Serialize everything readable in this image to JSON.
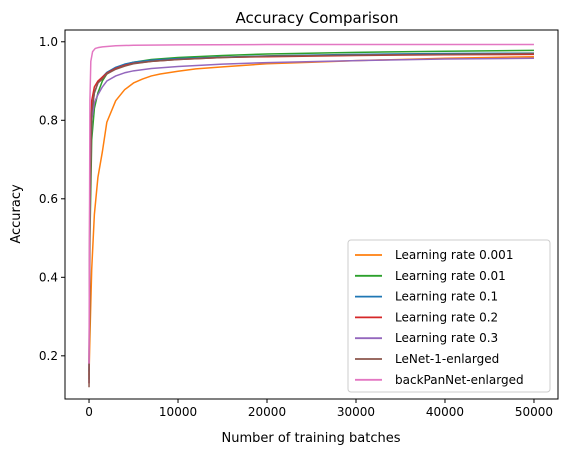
{
  "chart_data": {
    "type": "line",
    "title": "Accuracy Comparison",
    "xlabel": "Number of training batches",
    "ylabel": "Accuracy",
    "xlim": [
      -2700,
      52700
    ],
    "ylim": [
      0.09,
      1.03
    ],
    "x_ticks": [
      {
        "value": 0,
        "label": "0"
      },
      {
        "value": 10000,
        "label": "10000"
      },
      {
        "value": 20000,
        "label": "20000"
      },
      {
        "value": 30000,
        "label": "30000"
      },
      {
        "value": 40000,
        "label": "40000"
      },
      {
        "value": 50000,
        "label": "50000"
      }
    ],
    "y_ticks": [
      {
        "value": 0.2,
        "label": "0.2"
      },
      {
        "value": 0.4,
        "label": "0.4"
      },
      {
        "value": 0.6,
        "label": "0.6"
      },
      {
        "value": 0.8,
        "label": "0.8"
      },
      {
        "value": 1.0,
        "label": "1.0"
      }
    ],
    "grid": false,
    "legend_position": "lower-right",
    "series": [
      {
        "name": "Learning rate 0.001",
        "color": "#ff7f0e",
        "points": [
          [
            0,
            0.15
          ],
          [
            100,
            0.25
          ],
          [
            300,
            0.42
          ],
          [
            600,
            0.56
          ],
          [
            1000,
            0.655
          ],
          [
            1500,
            0.72
          ],
          [
            2000,
            0.795
          ],
          [
            3000,
            0.85
          ],
          [
            4000,
            0.878
          ],
          [
            5000,
            0.895
          ],
          [
            6000,
            0.905
          ],
          [
            7000,
            0.913
          ],
          [
            8000,
            0.918
          ],
          [
            10000,
            0.925
          ],
          [
            12000,
            0.931
          ],
          [
            15000,
            0.936
          ],
          [
            20000,
            0.944
          ],
          [
            25000,
            0.948
          ],
          [
            30000,
            0.952
          ],
          [
            35000,
            0.955
          ],
          [
            40000,
            0.958
          ],
          [
            45000,
            0.96
          ],
          [
            50000,
            0.962
          ]
        ]
      },
      {
        "name": "Learning rate 0.01",
        "color": "#2ca02c",
        "points": [
          [
            0,
            0.14
          ],
          [
            100,
            0.5
          ],
          [
            300,
            0.75
          ],
          [
            600,
            0.83
          ],
          [
            1000,
            0.87
          ],
          [
            1500,
            0.9
          ],
          [
            2000,
            0.918
          ],
          [
            3000,
            0.932
          ],
          [
            4000,
            0.942
          ],
          [
            5000,
            0.948
          ],
          [
            7000,
            0.955
          ],
          [
            10000,
            0.96
          ],
          [
            15000,
            0.965
          ],
          [
            20000,
            0.969
          ],
          [
            30000,
            0.973
          ],
          [
            40000,
            0.976
          ],
          [
            50000,
            0.978
          ]
        ]
      },
      {
        "name": "Learning rate 0.1",
        "color": "#1f77b4",
        "points": [
          [
            0,
            0.16
          ],
          [
            100,
            0.62
          ],
          [
            300,
            0.82
          ],
          [
            600,
            0.87
          ],
          [
            1000,
            0.895
          ],
          [
            1500,
            0.91
          ],
          [
            2000,
            0.922
          ],
          [
            3000,
            0.935
          ],
          [
            4000,
            0.943
          ],
          [
            5000,
            0.948
          ],
          [
            7000,
            0.953
          ],
          [
            10000,
            0.957
          ],
          [
            15000,
            0.961
          ],
          [
            20000,
            0.964
          ],
          [
            30000,
            0.968
          ],
          [
            40000,
            0.97
          ],
          [
            50000,
            0.971
          ]
        ]
      },
      {
        "name": "Learning rate 0.2",
        "color": "#d62728",
        "points": [
          [
            0,
            0.13
          ],
          [
            100,
            0.7
          ],
          [
            300,
            0.85
          ],
          [
            600,
            0.885
          ],
          [
            1000,
            0.9
          ],
          [
            1500,
            0.91
          ],
          [
            2000,
            0.92
          ],
          [
            3000,
            0.932
          ],
          [
            4000,
            0.94
          ],
          [
            5000,
            0.945
          ],
          [
            7000,
            0.95
          ],
          [
            10000,
            0.955
          ],
          [
            15000,
            0.96
          ],
          [
            20000,
            0.962
          ],
          [
            30000,
            0.965
          ],
          [
            40000,
            0.967
          ],
          [
            50000,
            0.968
          ]
        ]
      },
      {
        "name": "Learning rate 0.3",
        "color": "#9467bd",
        "points": [
          [
            0,
            0.13
          ],
          [
            100,
            0.6
          ],
          [
            300,
            0.8
          ],
          [
            600,
            0.845
          ],
          [
            1000,
            0.865
          ],
          [
            1500,
            0.885
          ],
          [
            2000,
            0.9
          ],
          [
            3000,
            0.913
          ],
          [
            4000,
            0.921
          ],
          [
            5000,
            0.926
          ],
          [
            7000,
            0.932
          ],
          [
            10000,
            0.937
          ],
          [
            15000,
            0.943
          ],
          [
            20000,
            0.947
          ],
          [
            30000,
            0.952
          ],
          [
            40000,
            0.956
          ],
          [
            50000,
            0.958
          ]
        ]
      },
      {
        "name": "LeNet-1-enlarged",
        "color": "#8c564b",
        "points": [
          [
            0,
            0.12
          ],
          [
            100,
            0.55
          ],
          [
            300,
            0.82
          ],
          [
            600,
            0.87
          ],
          [
            1000,
            0.895
          ],
          [
            1500,
            0.905
          ],
          [
            2000,
            0.918
          ],
          [
            3000,
            0.93
          ],
          [
            4000,
            0.938
          ],
          [
            5000,
            0.944
          ],
          [
            7000,
            0.95
          ],
          [
            10000,
            0.955
          ],
          [
            15000,
            0.96
          ],
          [
            20000,
            0.963
          ],
          [
            30000,
            0.966
          ],
          [
            40000,
            0.968
          ],
          [
            50000,
            0.97
          ]
        ]
      },
      {
        "name": "backPanNet-enlarged",
        "color": "#e377c2",
        "points": [
          [
            0,
            0.18
          ],
          [
            100,
            0.85
          ],
          [
            200,
            0.95
          ],
          [
            400,
            0.975
          ],
          [
            700,
            0.983
          ],
          [
            1000,
            0.985
          ],
          [
            1500,
            0.987
          ],
          [
            2000,
            0.988
          ],
          [
            3000,
            0.99
          ],
          [
            5000,
            0.991
          ],
          [
            10000,
            0.992
          ],
          [
            20000,
            0.993
          ],
          [
            30000,
            0.993
          ],
          [
            40000,
            0.993
          ],
          [
            50000,
            0.993
          ]
        ]
      }
    ]
  }
}
